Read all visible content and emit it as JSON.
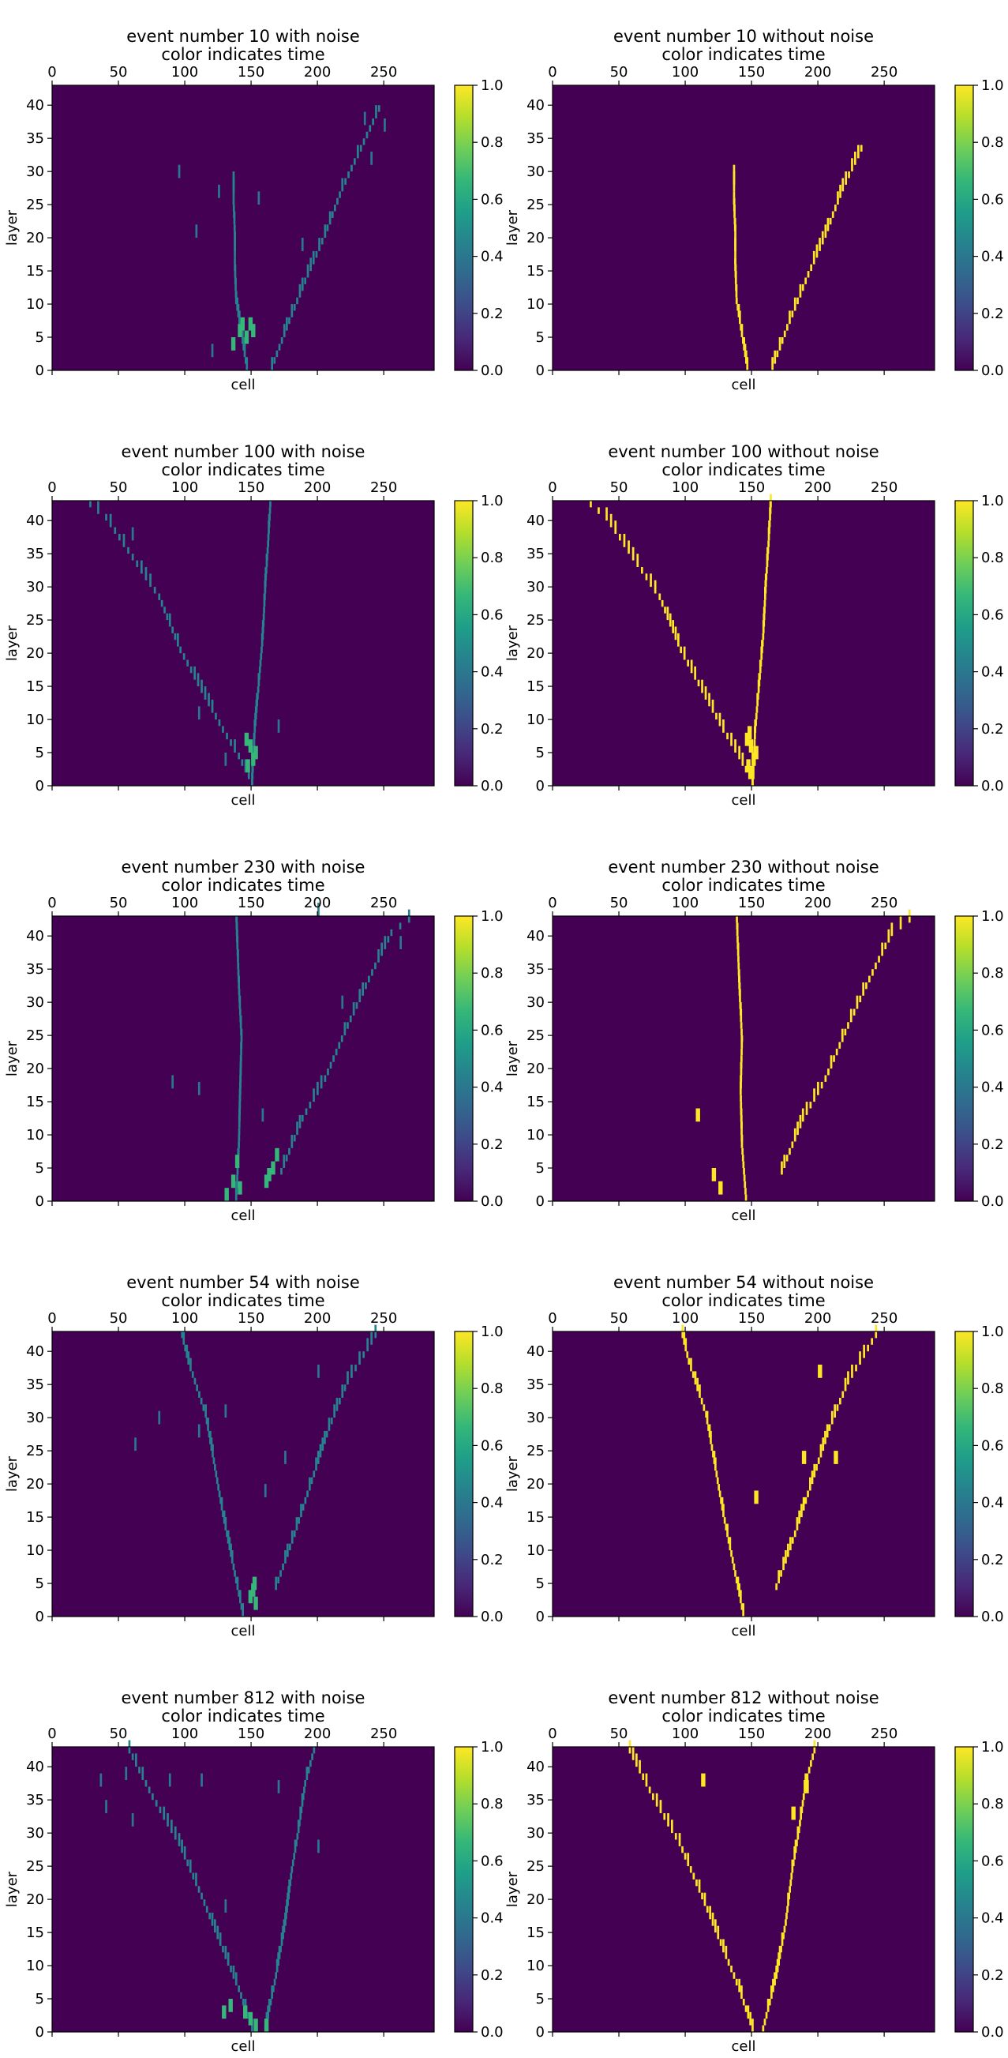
{
  "figure": {
    "colorbar_ticks": [
      "0.0",
      "0.2",
      "0.4",
      "0.6",
      "0.8",
      "1.0"
    ],
    "x_ticks": [
      "0",
      "50",
      "100",
      "150",
      "200",
      "250"
    ],
    "y_ticks": [
      "0",
      "5",
      "10",
      "15",
      "20",
      "25",
      "30",
      "35",
      "40"
    ]
  },
  "colors": {
    "background": "#440154",
    "noise_hit": "#2a788e",
    "track_hit_noisy": "#26828e",
    "track_hit_clean": "#fde725",
    "cluster_hit": "#35b779"
  },
  "chart_data": [
    {
      "type": "heatmap",
      "title_line1": "event number 10 with noise",
      "title_line2": "color indicates time",
      "xlabel": "cell",
      "ylabel": "layer",
      "xlim": [
        0,
        288
      ],
      "ylim": [
        0,
        43
      ],
      "clim": [
        0,
        1
      ],
      "colormap": "viridis",
      "noise": true,
      "tracks": [
        {
          "points": [
            [
              146,
              0
            ],
            [
              142,
              5
            ],
            [
              138,
              10
            ],
            [
              137,
              15
            ],
            [
              137,
              20
            ],
            [
              136,
              25
            ],
            [
              136,
              30
            ]
          ]
        },
        {
          "points": [
            [
              165,
              0
            ],
            [
              178,
              7
            ],
            [
              192,
              14
            ],
            [
              205,
              20
            ],
            [
              218,
              27
            ],
            [
              232,
              33
            ],
            [
              248,
              40
            ]
          ]
        }
      ],
      "cluster": [
        [
          135,
          3
        ],
        [
          140,
          5
        ],
        [
          145,
          4
        ],
        [
          150,
          5
        ],
        [
          148,
          6
        ],
        [
          142,
          6
        ]
      ],
      "noise_hits": [
        [
          108,
          20
        ],
        [
          125,
          26
        ],
        [
          155,
          25
        ],
        [
          235,
          37
        ],
        [
          240,
          31
        ],
        [
          188,
          18
        ],
        [
          95,
          29
        ],
        [
          120,
          2
        ],
        [
          250,
          36
        ]
      ]
    },
    {
      "type": "heatmap",
      "title_line1": "event number 10 without noise",
      "title_line2": "color indicates time",
      "xlabel": "cell",
      "ylabel": "layer",
      "xlim": [
        0,
        288
      ],
      "ylim": [
        0,
        43
      ],
      "clim": [
        0,
        1
      ],
      "colormap": "viridis",
      "noise": false,
      "tracks": [
        {
          "points": [
            [
              146,
              0
            ],
            [
              142,
              5
            ],
            [
              138,
              10
            ],
            [
              137,
              15
            ],
            [
              137,
              20
            ],
            [
              136,
              25
            ],
            [
              136,
              30
            ]
          ]
        },
        {
          "points": [
            [
              165,
              0
            ],
            [
              178,
              7
            ],
            [
              192,
              14
            ],
            [
              205,
              20
            ],
            [
              218,
              27
            ],
            [
              232,
              33
            ],
            [
              255,
              34
            ]
          ]
        }
      ],
      "cluster": [],
      "noise_hits": []
    },
    {
      "type": "heatmap",
      "title_line1": "event number 100 with noise",
      "title_line2": "color indicates time",
      "xlabel": "cell",
      "ylabel": "layer",
      "xlim": [
        0,
        288
      ],
      "ylim": [
        0,
        43
      ],
      "clim": [
        0,
        1
      ],
      "colormap": "viridis",
      "noise": true,
      "tracks": [
        {
          "points": [
            [
              150,
              0
            ],
            [
              140,
              4
            ],
            [
              128,
              8
            ],
            [
              112,
              14
            ],
            [
              96,
              20
            ],
            [
              80,
              28
            ],
            [
              60,
              34
            ],
            [
              40,
              40
            ],
            [
              22,
              43
            ]
          ]
        },
        {
          "points": [
            [
              150,
              0
            ],
            [
              152,
              8
            ],
            [
              155,
              15
            ],
            [
              158,
              22
            ],
            [
              160,
              30
            ],
            [
              162,
              36
            ],
            [
              164,
              43
            ]
          ]
        }
      ],
      "cluster": [
        [
          146,
          2
        ],
        [
          148,
          5
        ],
        [
          150,
          3
        ],
        [
          145,
          6
        ],
        [
          152,
          4
        ]
      ],
      "noise_hits": [
        [
          130,
          3
        ],
        [
          170,
          8
        ],
        [
          110,
          10
        ],
        [
          60,
          37
        ]
      ]
    },
    {
      "type": "heatmap",
      "title_line1": "event number 100 without noise",
      "title_line2": "color indicates time",
      "xlabel": "cell",
      "ylabel": "layer",
      "xlim": [
        0,
        288
      ],
      "ylim": [
        0,
        43
      ],
      "clim": [
        0,
        1
      ],
      "colormap": "viridis",
      "noise": false,
      "tracks": [
        {
          "points": [
            [
              150,
              0
            ],
            [
              140,
              4
            ],
            [
              128,
              8
            ],
            [
              112,
              14
            ],
            [
              96,
              20
            ],
            [
              80,
              28
            ],
            [
              60,
              34
            ],
            [
              40,
              40
            ],
            [
              22,
              43
            ]
          ]
        },
        {
          "points": [
            [
              150,
              0
            ],
            [
              152,
              8
            ],
            [
              155,
              15
            ],
            [
              158,
              22
            ],
            [
              160,
              30
            ],
            [
              162,
              36
            ],
            [
              164,
              43
            ]
          ]
        }
      ],
      "cluster": [
        [
          146,
          2
        ],
        [
          148,
          5
        ],
        [
          150,
          3
        ],
        [
          145,
          6
        ],
        [
          152,
          4
        ],
        [
          147,
          7
        ],
        [
          149,
          1
        ]
      ],
      "noise_hits": []
    },
    {
      "type": "heatmap",
      "title_line1": "event number 230 with noise",
      "title_line2": "color indicates time",
      "xlabel": "cell",
      "ylabel": "layer",
      "xlim": [
        0,
        288
      ],
      "ylim": [
        0,
        43
      ],
      "clim": [
        0,
        1
      ],
      "colormap": "viridis",
      "noise": true,
      "tracks": [
        {
          "points": [
            [
              138,
              0
            ],
            [
              140,
              8
            ],
            [
              141,
              16
            ],
            [
              142,
              24
            ],
            [
              140,
              32
            ],
            [
              138,
              43
            ]
          ]
        },
        {
          "points": [
            [
              172,
              4
            ],
            [
              188,
              12
            ],
            [
              205,
              18
            ],
            [
              222,
              26
            ],
            [
              238,
              33
            ],
            [
              255,
              40
            ],
            [
              275,
              43
            ]
          ]
        }
      ],
      "cluster": [
        [
          135,
          2
        ],
        [
          138,
          5
        ],
        [
          140,
          1
        ],
        [
          160,
          2
        ],
        [
          165,
          4
        ],
        [
          168,
          6
        ],
        [
          162,
          3
        ],
        [
          130,
          0
        ]
      ],
      "noise_hits": [
        [
          110,
          16
        ],
        [
          158,
          12
        ],
        [
          218,
          29
        ],
        [
          90,
          17
        ],
        [
          200,
          43
        ],
        [
          262,
          38
        ]
      ]
    },
    {
      "type": "heatmap",
      "title_line1": "event number 230 without noise",
      "title_line2": "color indicates time",
      "xlabel": "cell",
      "ylabel": "layer",
      "xlim": [
        0,
        288
      ],
      "ylim": [
        0,
        43
      ],
      "clim": [
        0,
        1
      ],
      "colormap": "viridis",
      "noise": false,
      "tracks": [
        {
          "points": [
            [
              145,
              0
            ],
            [
              142,
              8
            ],
            [
              141,
              16
            ],
            [
              142,
              24
            ],
            [
              140,
              32
            ],
            [
              138,
              43
            ]
          ]
        },
        {
          "points": [
            [
              172,
              4
            ],
            [
              188,
              12
            ],
            [
              205,
              18
            ],
            [
              222,
              26
            ],
            [
              238,
              33
            ],
            [
              255,
              40
            ],
            [
              275,
              43
            ]
          ]
        }
      ],
      "cluster": [
        [
          120,
          3
        ],
        [
          125,
          1
        ],
        [
          108,
          12
        ]
      ],
      "noise_hits": []
    },
    {
      "type": "heatmap",
      "title_line1": "event number 54 with noise",
      "title_line2": "color indicates time",
      "xlabel": "cell",
      "ylabel": "layer",
      "xlim": [
        0,
        288
      ],
      "ylim": [
        0,
        43
      ],
      "clim": [
        0,
        1
      ],
      "colormap": "viridis",
      "noise": true,
      "tracks": [
        {
          "points": [
            [
              143,
              0
            ],
            [
              135,
              8
            ],
            [
              128,
              15
            ],
            [
              122,
              22
            ],
            [
              115,
              30
            ],
            [
              102,
              38
            ],
            [
              96,
              43
            ]
          ]
        },
        {
          "points": [
            [
              168,
              4
            ],
            [
              182,
              12
            ],
            [
              195,
              20
            ],
            [
              208,
              28
            ],
            [
              222,
              35
            ],
            [
              240,
              41
            ],
            [
              246,
              43
            ]
          ]
        }
      ],
      "cluster": [
        [
          150,
          3
        ],
        [
          152,
          1
        ],
        [
          148,
          2
        ],
        [
          151,
          4
        ]
      ],
      "noise_hits": [
        [
          62,
          25
        ],
        [
          80,
          29
        ],
        [
          130,
          30
        ],
        [
          110,
          27
        ],
        [
          160,
          18
        ],
        [
          200,
          36
        ],
        [
          175,
          23
        ]
      ]
    },
    {
      "type": "heatmap",
      "title_line1": "event number 54 without noise",
      "title_line2": "color indicates time",
      "xlabel": "cell",
      "ylabel": "layer",
      "xlim": [
        0,
        288
      ],
      "ylim": [
        0,
        43
      ],
      "clim": [
        0,
        1
      ],
      "colormap": "viridis",
      "noise": false,
      "tracks": [
        {
          "points": [
            [
              143,
              0
            ],
            [
              135,
              8
            ],
            [
              128,
              15
            ],
            [
              122,
              22
            ],
            [
              115,
              30
            ],
            [
              102,
              38
            ],
            [
              96,
              43
            ]
          ]
        },
        {
          "points": [
            [
              168,
              4
            ],
            [
              182,
              12
            ],
            [
              195,
              20
            ],
            [
              208,
              28
            ],
            [
              222,
              35
            ],
            [
              240,
              41
            ],
            [
              246,
              43
            ]
          ]
        }
      ],
      "cluster": [
        [
          152,
          17
        ],
        [
          188,
          23
        ],
        [
          200,
          36
        ],
        [
          212,
          23
        ]
      ],
      "noise_hits": []
    },
    {
      "type": "heatmap",
      "title_line1": "event number 812 with noise",
      "title_line2": "color indicates time",
      "xlabel": "cell",
      "ylabel": "layer",
      "xlim": [
        0,
        288
      ],
      "ylim": [
        0,
        43
      ],
      "clim": [
        0,
        1
      ],
      "colormap": "viridis",
      "noise": true,
      "tracks": [
        {
          "points": [
            [
              150,
              0
            ],
            [
              140,
              6
            ],
            [
              128,
              12
            ],
            [
              112,
              20
            ],
            [
              95,
              28
            ],
            [
              75,
              35
            ],
            [
              55,
              43
            ]
          ]
        },
        {
          "points": [
            [
              160,
              0
            ],
            [
              168,
              8
            ],
            [
              175,
              16
            ],
            [
              180,
              24
            ],
            [
              185,
              30
            ],
            [
              190,
              37
            ],
            [
              198,
              43
            ]
          ]
        }
      ],
      "cluster": [
        [
          128,
          2
        ],
        [
          133,
          3
        ],
        [
          148,
          1
        ],
        [
          152,
          0
        ],
        [
          160,
          0
        ],
        [
          144,
          2
        ]
      ],
      "noise_hits": [
        [
          36,
          37
        ],
        [
          55,
          38
        ],
        [
          88,
          37
        ],
        [
          112,
          37
        ],
        [
          170,
          36
        ],
        [
          60,
          31
        ],
        [
          130,
          18
        ],
        [
          200,
          27
        ],
        [
          40,
          33
        ]
      ]
    },
    {
      "type": "heatmap",
      "title_line1": "event number 812 without noise",
      "title_line2": "color indicates time",
      "xlabel": "cell",
      "ylabel": "layer",
      "xlim": [
        0,
        288
      ],
      "ylim": [
        0,
        43
      ],
      "clim": [
        0,
        1
      ],
      "colormap": "viridis",
      "noise": false,
      "tracks": [
        {
          "points": [
            [
              150,
              0
            ],
            [
              140,
              6
            ],
            [
              128,
              12
            ],
            [
              112,
              20
            ],
            [
              95,
              28
            ],
            [
              75,
              35
            ],
            [
              55,
              43
            ]
          ]
        },
        {
          "points": [
            [
              158,
              0
            ],
            [
              168,
              8
            ],
            [
              175,
              16
            ],
            [
              180,
              24
            ],
            [
              185,
              30
            ],
            [
              190,
              37
            ],
            [
              198,
              43
            ]
          ]
        }
      ],
      "cluster": [
        [
          112,
          37
        ],
        [
          180,
          32
        ],
        [
          190,
          36
        ]
      ],
      "noise_hits": []
    }
  ]
}
